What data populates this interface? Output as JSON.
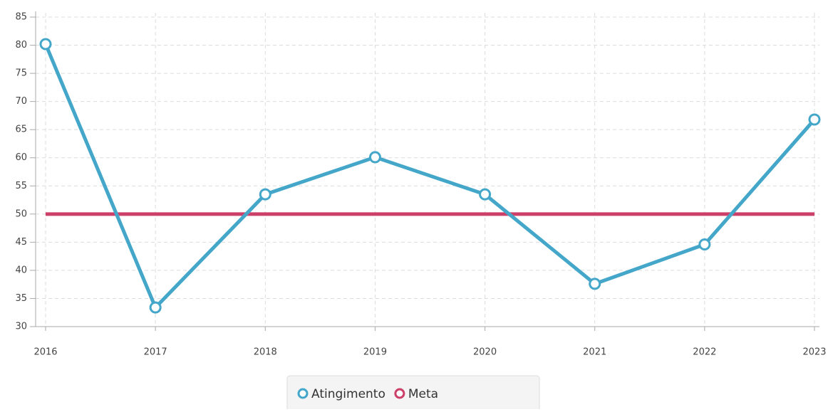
{
  "chart_data": {
    "type": "line",
    "categories": [
      "2016",
      "2017",
      "2018",
      "2019",
      "2020",
      "2021",
      "2022",
      "2023"
    ],
    "series": [
      {
        "name": "Atingimento",
        "color": "#44a7c9",
        "marker": true,
        "values": [
          80.2,
          33.4,
          53.5,
          60.1,
          53.5,
          37.6,
          44.6,
          66.8
        ]
      },
      {
        "name": "Meta",
        "color": "#cc3f68",
        "marker": false,
        "values": [
          50,
          50,
          50,
          50,
          50,
          50,
          50,
          50
        ]
      }
    ],
    "ylim": [
      30,
      85
    ],
    "yticks": [
      30,
      35,
      40,
      45,
      50,
      55,
      60,
      65,
      70,
      75,
      80,
      85
    ],
    "grid": true,
    "legend": "bottom"
  }
}
